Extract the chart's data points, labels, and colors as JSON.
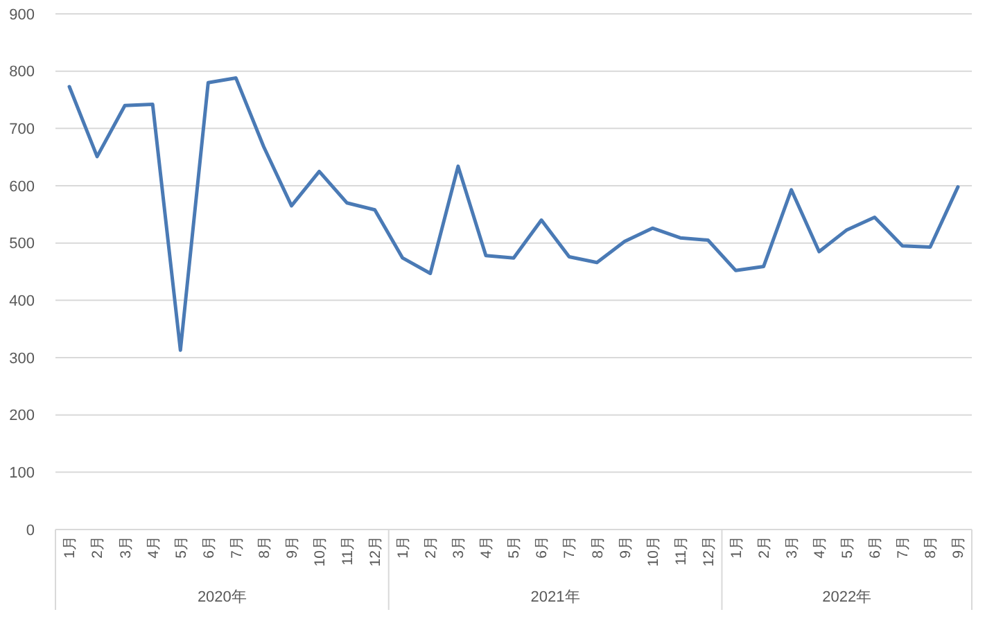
{
  "chart_data": {
    "type": "line",
    "categories": [
      "1月",
      "2月",
      "3月",
      "4月",
      "5月",
      "6月",
      "7月",
      "8月",
      "9月",
      "10月",
      "11月",
      "12月",
      "1月",
      "2月",
      "3月",
      "4月",
      "5月",
      "6月",
      "7月",
      "8月",
      "9月",
      "10月",
      "11月",
      "12月",
      "1月",
      "2月",
      "3月",
      "4月",
      "5月",
      "6月",
      "7月",
      "8月",
      "9月"
    ],
    "series": [
      {
        "color": "#4a7ab5",
        "values": [
          773,
          651,
          740,
          742,
          313,
          780,
          788,
          668,
          565,
          625,
          570,
          558,
          474,
          447,
          634,
          478,
          474,
          540,
          476,
          466,
          503,
          526,
          509,
          505,
          452,
          459,
          593,
          485,
          523,
          545,
          495,
          493,
          598
        ]
      }
    ],
    "ylim": [
      0,
      900
    ],
    "yticks": [
      0,
      100,
      200,
      300,
      400,
      500,
      600,
      700,
      800,
      900
    ],
    "grid": "y",
    "marker": "none",
    "line_style": "solid",
    "annotations": [
      "2020年",
      "2021年",
      "2022年"
    ]
  }
}
